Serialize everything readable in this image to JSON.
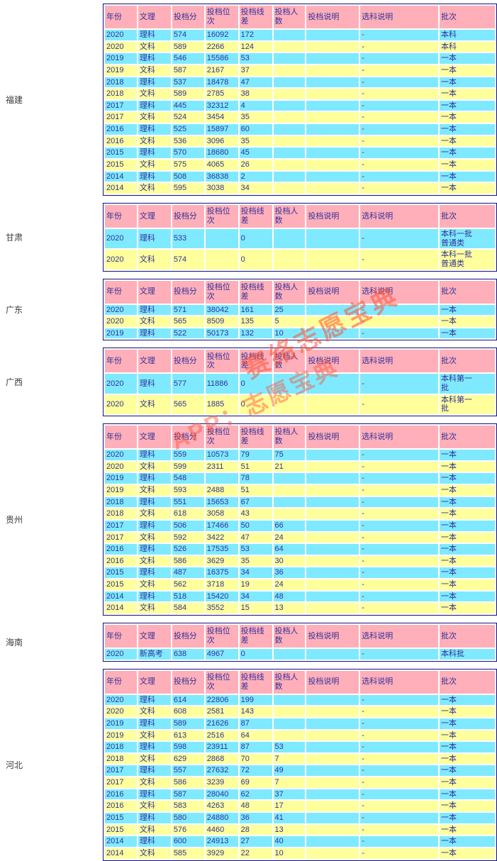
{
  "columns": [
    "年份",
    "文理",
    "投档分",
    "投档位次",
    "投档线差",
    "投档人数",
    "投档说明",
    "选科说明",
    "批次"
  ],
  "colors": {
    "header_bg": "#ffafb9",
    "row_cyan": "#7feaff",
    "row_yellow": "#ffff9c",
    "cell_text": "#31319b",
    "table_border": "#10107a",
    "province_text": "#3c3c3c",
    "watermark": "#ff5233"
  },
  "watermark": {
    "line1": "赛络志愿宝典",
    "line2": "APP：志愿宝典"
  },
  "sections": [
    {
      "province": "福建",
      "rows": [
        [
          "2020",
          "理科",
          "574",
          "16092",
          "172",
          "",
          "",
          "-",
          "本科"
        ],
        [
          "2020",
          "文科",
          "589",
          "2266",
          "124",
          "",
          "",
          "-",
          "本科"
        ],
        [
          "2019",
          "理科",
          "546",
          "15586",
          "53",
          "",
          "",
          "-",
          "一本"
        ],
        [
          "2019",
          "文科",
          "587",
          "2167",
          "37",
          "",
          "",
          "-",
          "一本"
        ],
        [
          "2018",
          "理科",
          "537",
          "18478",
          "47",
          "",
          "",
          "-",
          "一本"
        ],
        [
          "2018",
          "文科",
          "589",
          "2785",
          "38",
          "",
          "",
          "-",
          "一本"
        ],
        [
          "2017",
          "理科",
          "445",
          "32312",
          "4",
          "",
          "",
          "-",
          "一本"
        ],
        [
          "2017",
          "文科",
          "524",
          "3454",
          "35",
          "",
          "",
          "-",
          "一本"
        ],
        [
          "2016",
          "理科",
          "525",
          "15897",
          "60",
          "",
          "",
          "-",
          "一本"
        ],
        [
          "2016",
          "文科",
          "536",
          "3096",
          "35",
          "",
          "",
          "-",
          "一本"
        ],
        [
          "2015",
          "理科",
          "570",
          "18680",
          "45",
          "",
          "",
          "-",
          "一本"
        ],
        [
          "2015",
          "文科",
          "575",
          "4065",
          "26",
          "",
          "",
          "-",
          "一本"
        ],
        [
          "2014",
          "理科",
          "508",
          "36838",
          "2",
          "",
          "",
          "-",
          "一本"
        ],
        [
          "2014",
          "文科",
          "595",
          "3038",
          "34",
          "",
          "",
          "-",
          "一本"
        ]
      ]
    },
    {
      "province": "甘肃",
      "rows": [
        [
          "2020",
          "理科",
          "533",
          "",
          "0",
          "",
          "",
          "-",
          "本科一批普通类"
        ],
        [
          "2020",
          "文科",
          "574",
          "",
          "0",
          "",
          "",
          "-",
          "本科一批普通类"
        ]
      ]
    },
    {
      "province": "广东",
      "rows": [
        [
          "2020",
          "理科",
          "571",
          "38042",
          "161",
          "25",
          "",
          "-",
          "一本"
        ],
        [
          "2020",
          "文科",
          "565",
          "8509",
          "135",
          "5",
          "",
          "-",
          "一本"
        ],
        [
          "2019",
          "理科",
          "522",
          "50173",
          "132",
          "10",
          "",
          "-",
          "一本"
        ]
      ]
    },
    {
      "province": "广西",
      "rows": [
        [
          "2020",
          "理科",
          "577",
          "11886",
          "0",
          "",
          "",
          "-",
          "本科第一批"
        ],
        [
          "2020",
          "文科",
          "565",
          "1885",
          "0",
          "",
          "",
          "-",
          "本科第一批"
        ]
      ]
    },
    {
      "province": "贵州",
      "rows": [
        [
          "2020",
          "理科",
          "559",
          "10573",
          "79",
          "75",
          "",
          "-",
          "一本"
        ],
        [
          "2020",
          "文科",
          "599",
          "2311",
          "51",
          "21",
          "",
          "-",
          "一本"
        ],
        [
          "2019",
          "理科",
          "548",
          "",
          "78",
          "",
          "",
          "-",
          "一本"
        ],
        [
          "2019",
          "文科",
          "593",
          "2488",
          "51",
          "",
          "",
          "-",
          "一本"
        ],
        [
          "2018",
          "理科",
          "551",
          "15653",
          "67",
          "",
          "",
          "-",
          "一本"
        ],
        [
          "2018",
          "文科",
          "618",
          "3058",
          "43",
          "",
          "",
          "-",
          "一本"
        ],
        [
          "2017",
          "理科",
          "506",
          "17466",
          "50",
          "66",
          "",
          "-",
          "一本"
        ],
        [
          "2017",
          "文科",
          "592",
          "3422",
          "47",
          "24",
          "",
          "-",
          "一本"
        ],
        [
          "2016",
          "理科",
          "526",
          "17535",
          "53",
          "64",
          "",
          "-",
          "一本"
        ],
        [
          "2016",
          "文科",
          "586",
          "3629",
          "35",
          "30",
          "",
          "-",
          "一本"
        ],
        [
          "2015",
          "理科",
          "487",
          "16375",
          "34",
          "36",
          "",
          "-",
          "一本"
        ],
        [
          "2015",
          "文科",
          "562",
          "3718",
          "19",
          "24",
          "",
          "-",
          "一本"
        ],
        [
          "2014",
          "理科",
          "518",
          "15420",
          "34",
          "48",
          "",
          "-",
          "一本"
        ],
        [
          "2014",
          "文科",
          "584",
          "3552",
          "15",
          "13",
          "",
          "-",
          "一本"
        ]
      ]
    },
    {
      "province": "海南",
      "rows": [
        [
          "2020",
          "新高考",
          "638",
          "4967",
          "0",
          "",
          "",
          "-",
          "本科批"
        ]
      ]
    },
    {
      "province": "河北",
      "rows": [
        [
          "2020",
          "理科",
          "614",
          "22806",
          "199",
          "",
          "",
          "-",
          "一本"
        ],
        [
          "2020",
          "文科",
          "608",
          "2581",
          "143",
          "",
          "",
          "-",
          "一本"
        ],
        [
          "2019",
          "理科",
          "589",
          "21626",
          "87",
          "",
          "",
          "-",
          "一本"
        ],
        [
          "2019",
          "文科",
          "613",
          "2516",
          "64",
          "",
          "",
          "-",
          "一本"
        ],
        [
          "2018",
          "理科",
          "598",
          "23911",
          "87",
          "53",
          "",
          "-",
          "一本"
        ],
        [
          "2018",
          "文科",
          "629",
          "2868",
          "70",
          "7",
          "",
          "-",
          "一本"
        ],
        [
          "2017",
          "理科",
          "557",
          "27632",
          "72",
          "49",
          "",
          "-",
          "一本"
        ],
        [
          "2017",
          "文科",
          "586",
          "3239",
          "69",
          "7",
          "",
          "-",
          "一本"
        ],
        [
          "2016",
          "理科",
          "587",
          "28040",
          "62",
          "37",
          "",
          "-",
          "一本"
        ],
        [
          "2016",
          "文科",
          "583",
          "4263",
          "48",
          "17",
          "",
          "-",
          "一本"
        ],
        [
          "2015",
          "理科",
          "580",
          "24880",
          "36",
          "41",
          "",
          "-",
          "一本"
        ],
        [
          "2015",
          "文科",
          "576",
          "4460",
          "28",
          "13",
          "",
          "-",
          "一本"
        ],
        [
          "2014",
          "理科",
          "600",
          "24913",
          "27",
          "40",
          "",
          "-",
          "一本"
        ],
        [
          "2014",
          "文科",
          "585",
          "3929",
          "22",
          "10",
          "",
          "-",
          "一本"
        ]
      ]
    }
  ]
}
